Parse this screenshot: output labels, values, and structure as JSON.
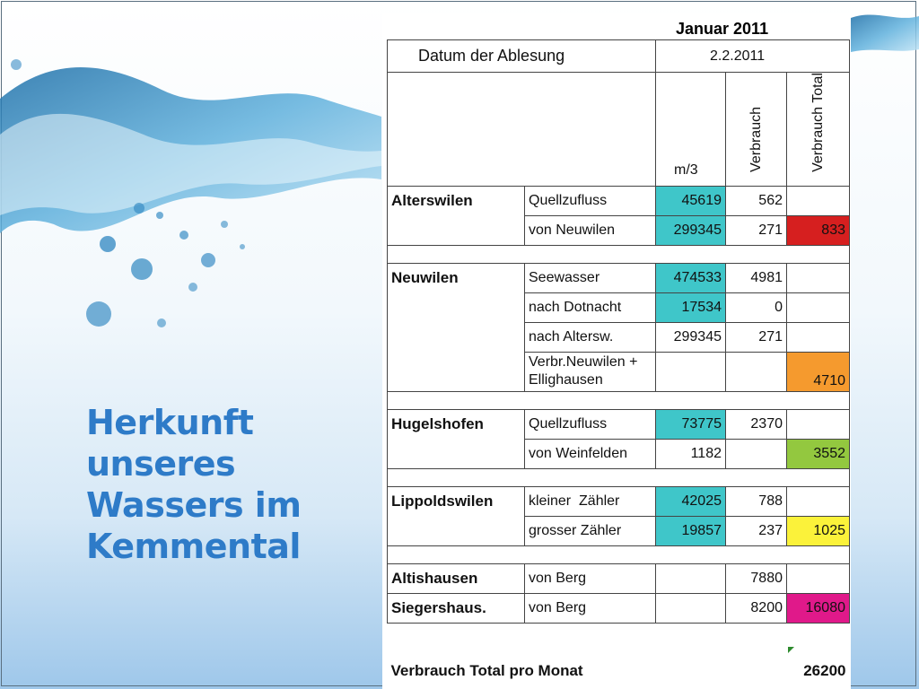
{
  "slide": {
    "title_lines": [
      "Herkunft",
      "unseres",
      "Wassers im",
      "Kemmental"
    ]
  },
  "table": {
    "month": "Januar 2011",
    "reading_label": "Datum der Ablesung",
    "reading_date": "2.2.2011",
    "unit": "m/3",
    "col_verbrauch": "Verbrauch",
    "col_verbrauch_total": "Verbrauch Total",
    "groups": [
      {
        "location": "Alterswilen",
        "rows": [
          {
            "source": "Quellzufluss",
            "m3": "45619",
            "verbrauch": "562",
            "total": ""
          },
          {
            "source": "von Neuwilen",
            "m3": "299345",
            "verbrauch": "271",
            "total": "833"
          }
        ]
      },
      {
        "location": "Neuwilen",
        "rows": [
          {
            "source": "Seewasser",
            "m3": "474533",
            "verbrauch": "4981",
            "total": ""
          },
          {
            "source": "nach Dotnacht",
            "m3": "17534",
            "verbrauch": "0",
            "total": ""
          },
          {
            "source": "nach Altersw.",
            "m3": "299345",
            "verbrauch": "271",
            "total": ""
          },
          {
            "source": "Verbr.Neuwilen + Ellighausen",
            "m3": "",
            "verbrauch": "",
            "total": "4710"
          }
        ]
      },
      {
        "location": "Hugelshofen",
        "rows": [
          {
            "source": "Quellzufluss",
            "m3": "73775",
            "verbrauch": "2370",
            "total": ""
          },
          {
            "source": "von Weinfelden",
            "m3": "1182",
            "verbrauch": "",
            "total": "3552"
          }
        ]
      },
      {
        "location": "Lippoldswilen",
        "rows": [
          {
            "source": "kleiner  Zähler",
            "m3": "42025",
            "verbrauch": "788",
            "total": ""
          },
          {
            "source": "grosser Zähler",
            "m3": "19857",
            "verbrauch": "237",
            "total": "1025"
          }
        ]
      },
      {
        "location": "Altishausen",
        "location2": "Siegershaus.",
        "rows": [
          {
            "source": "von Berg",
            "m3": "",
            "verbrauch": "7880",
            "total": ""
          },
          {
            "source": "von Berg",
            "m3": "",
            "verbrauch": "8200",
            "total": "16080"
          }
        ]
      }
    ],
    "footer_label": "Verbrauch Total pro Monat",
    "footer_total": "26200"
  }
}
